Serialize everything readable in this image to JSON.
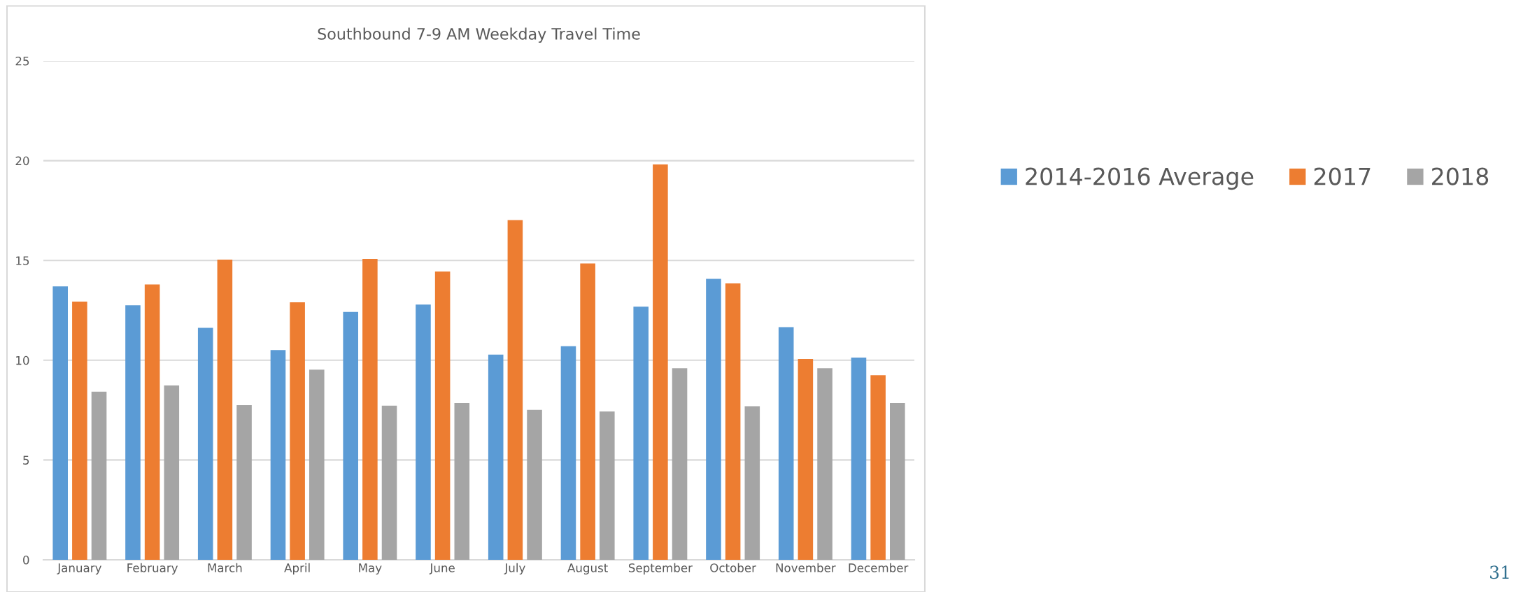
{
  "chart_data": {
    "type": "bar",
    "title": "Southbound 7-9 AM Weekday Travel Time",
    "categories": [
      "January",
      "February",
      "March",
      "April",
      "May",
      "June",
      "July",
      "August",
      "September",
      "October",
      "November",
      "December"
    ],
    "series": [
      {
        "name": "2014-2016 Average",
        "color": "#5b9bd5",
        "values": [
          13.7,
          12.75,
          11.62,
          10.51,
          12.42,
          12.79,
          10.28,
          10.7,
          12.68,
          14.08,
          11.66,
          10.13
        ]
      },
      {
        "name": "2017",
        "color": "#ed7d31",
        "values": [
          12.94,
          13.8,
          15.04,
          12.9,
          15.08,
          14.45,
          17.02,
          14.85,
          19.81,
          13.85,
          10.06,
          9.25
        ]
      },
      {
        "name": "2018",
        "color": "#a5a5a5",
        "values": [
          8.42,
          8.74,
          7.75,
          9.53,
          7.72,
          7.85,
          7.51,
          7.43,
          9.6,
          7.7,
          9.6,
          7.85
        ]
      }
    ],
    "ylim": [
      0,
      25
    ],
    "yticks": [
      0,
      5,
      10,
      15,
      20,
      25
    ],
    "grid": "y",
    "legend": "right",
    "annotations": [
      "31"
    ]
  }
}
